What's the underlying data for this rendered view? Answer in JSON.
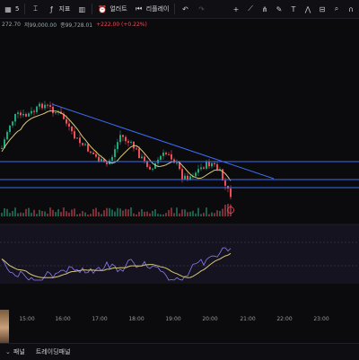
{
  "toolbar": {
    "items": [
      {
        "icon": "grid-icon",
        "label": "5"
      },
      {
        "icon": "candle-icon",
        "label": ""
      },
      {
        "icon": "indicator-icon",
        "label": "지표"
      },
      {
        "icon": "layout-icon",
        "label": ""
      },
      {
        "icon": "alert-icon",
        "label": "얼러트"
      },
      {
        "icon": "replay-icon",
        "label": "리플레이"
      },
      {
        "icon": "undo-icon",
        "label": ""
      },
      {
        "icon": "redo-icon",
        "label": ""
      }
    ],
    "right_icons": [
      "crosshair-icon",
      "trendline-icon",
      "fork-icon",
      "brush-icon",
      "text-icon",
      "pattern-icon",
      "ruler-icon",
      "zoom-icon",
      "magnet-icon",
      "lock-icon"
    ]
  },
  "price_line": {
    "prefix": "272.70",
    "open_label": "저99,000.00",
    "close_label": "종99,728.01",
    "change": "+222.00 (+0.22%)"
  },
  "time_axis": [
    "15:00",
    "16:00",
    "17:00",
    "18:00",
    "19:00",
    "20:00",
    "21:00",
    "22:00",
    "23:00"
  ],
  "bottom_tabs": [
    {
      "label": "패널"
    },
    {
      "label": "트레이딩패널"
    }
  ],
  "colors": {
    "up": "#1ea97c",
    "down": "#ef4b59",
    "trendline": "#3b6df0",
    "hline": "#3b6df0",
    "ma": "#d8c779",
    "rsi": "#8a7cf0",
    "rsi_ma": "#d8c779",
    "background": "#0b0b0e",
    "osc_bg": "#15131f"
  }
}
